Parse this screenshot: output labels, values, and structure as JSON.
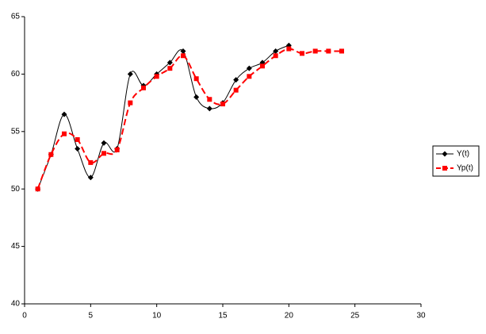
{
  "chart_data": {
    "type": "line",
    "xlim": [
      0,
      30
    ],
    "xticks": [
      0,
      5,
      10,
      15,
      20,
      25,
      30
    ],
    "ylim": [
      40,
      65
    ],
    "yticks": [
      40,
      45,
      50,
      55,
      60,
      65
    ],
    "smooth": true,
    "legend": "right",
    "series": [
      {
        "name": "Y(t)",
        "color": "#000000",
        "marker": "diamond",
        "line_style": "solid",
        "x": [
          1,
          2,
          3,
          4,
          5,
          6,
          7,
          8,
          9,
          10,
          11,
          12,
          13,
          14,
          15,
          16,
          17,
          18,
          19,
          20
        ],
        "values": [
          50,
          53,
          56.5,
          53.5,
          51,
          54,
          53.5,
          60,
          59,
          60,
          61,
          62,
          58,
          57,
          57.5,
          59.5,
          60.5,
          61,
          62,
          62.5
        ]
      },
      {
        "name": "Yp(t)",
        "color": "#ff0000",
        "marker": "square",
        "line_style": "dashed",
        "x": [
          1,
          2,
          3,
          4,
          5,
          6,
          7,
          8,
          9,
          10,
          11,
          12,
          13,
          14,
          15,
          16,
          17,
          18,
          19,
          20,
          21,
          22,
          23,
          24
        ],
        "values": [
          50,
          53,
          54.8,
          54.3,
          52.3,
          53.1,
          53.4,
          57.5,
          58.8,
          59.8,
          60.5,
          61.6,
          59.6,
          57.8,
          57.4,
          58.6,
          59.8,
          60.7,
          61.6,
          62.2,
          61.8,
          62,
          62,
          62
        ]
      }
    ]
  }
}
